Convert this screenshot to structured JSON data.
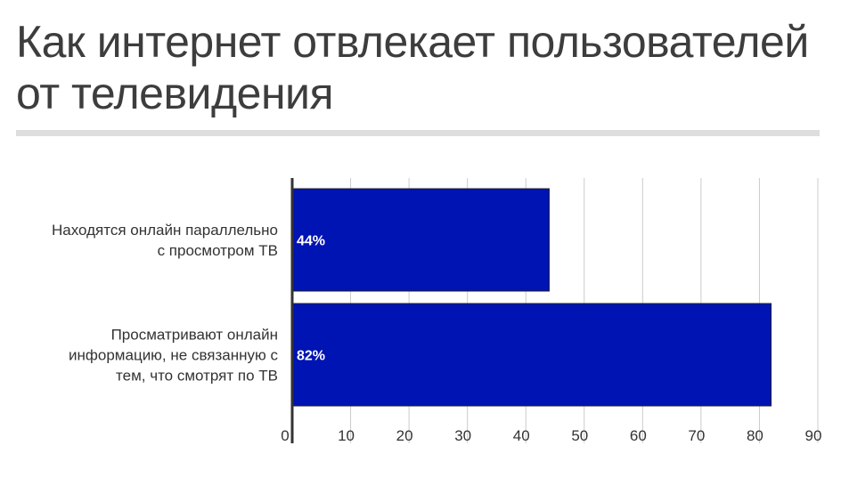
{
  "title": "Как интернет отвлекает пользователей от телевидения",
  "chart_data": {
    "type": "bar",
    "orientation": "horizontal",
    "categories": [
      "Находятся онлайн параллельно с просмотром ТВ",
      "Просматривают онлайн информацию, не связанную с тем, что смотрят по ТВ"
    ],
    "category_lines": [
      [
        "Находятся онлайн параллельно",
        "с просмотром ТВ"
      ],
      [
        "Просматривают онлайн",
        "информацию, не связанную с",
        "тем, что смотрят по ТВ"
      ]
    ],
    "values": [
      44,
      82
    ],
    "data_labels": [
      "44%",
      "82%"
    ],
    "xlim": [
      0,
      90
    ],
    "x_ticks": [
      0,
      10,
      20,
      30,
      40,
      50,
      60,
      70,
      80,
      90
    ],
    "grid": true,
    "legend": "none",
    "bar_color": "#0013b3",
    "bar_border_color": "#222222",
    "grid_color": "#cccccc",
    "axis_color": "#333333"
  }
}
